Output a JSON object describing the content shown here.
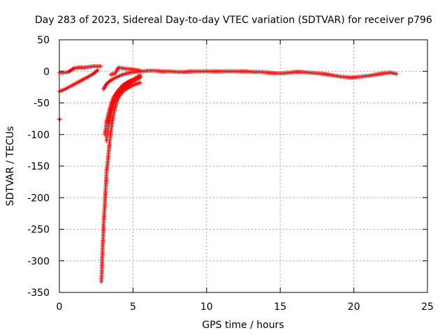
{
  "chart_data": {
    "type": "scatter",
    "title": "Day 283 of 2023, Sidereal Day-to-day VTEC variation (SDTVAR) for receiver p796",
    "xlabel": "GPS time / hours",
    "ylabel": "SDTVAR / TECUs",
    "xlim": [
      0,
      25
    ],
    "ylim": [
      -350,
      50
    ],
    "xticks": [
      0,
      5,
      10,
      15,
      20,
      25
    ],
    "yticks": [
      50,
      0,
      -50,
      -100,
      -150,
      -200,
      -250,
      -300,
      -350
    ],
    "grid": true,
    "marker": "+",
    "series": [
      {
        "name": "SDTVAR",
        "color": "#ff0000",
        "points": [
          [
            0.0,
            -76
          ],
          [
            0.03,
            -76
          ],
          [
            0.0,
            -2
          ],
          [
            0.3,
            -2
          ],
          [
            0.6,
            -1
          ],
          [
            0.8,
            2
          ],
          [
            1.0,
            5
          ],
          [
            1.3,
            6
          ],
          [
            1.6,
            6
          ],
          [
            2.0,
            7
          ],
          [
            2.3,
            8
          ],
          [
            2.6,
            8
          ],
          [
            2.8,
            8
          ],
          [
            0.0,
            -32
          ],
          [
            0.4,
            -28
          ],
          [
            0.8,
            -23
          ],
          [
            1.2,
            -18
          ],
          [
            1.6,
            -13
          ],
          [
            2.0,
            -8
          ],
          [
            2.3,
            -4
          ],
          [
            2.6,
            2
          ],
          [
            2.85,
            -333
          ],
          [
            2.88,
            -320
          ],
          [
            2.9,
            -300
          ],
          [
            2.92,
            -290
          ],
          [
            2.95,
            -275
          ],
          [
            2.98,
            -260
          ],
          [
            3.0,
            -245
          ],
          [
            3.05,
            -225
          ],
          [
            3.1,
            -205
          ],
          [
            3.15,
            -185
          ],
          [
            3.2,
            -160
          ],
          [
            3.3,
            -140
          ],
          [
            3.4,
            -115
          ],
          [
            3.5,
            -95
          ],
          [
            3.6,
            -78
          ],
          [
            3.75,
            -60
          ],
          [
            3.9,
            -48
          ],
          [
            4.1,
            -38
          ],
          [
            4.4,
            -30
          ],
          [
            4.8,
            -24
          ],
          [
            5.2,
            -20
          ],
          [
            5.5,
            -18
          ],
          [
            3.2,
            -110
          ],
          [
            3.3,
            -90
          ],
          [
            3.45,
            -72
          ],
          [
            3.6,
            -58
          ],
          [
            3.8,
            -45
          ],
          [
            4.0,
            -36
          ],
          [
            4.3,
            -28
          ],
          [
            4.6,
            -22
          ],
          [
            5.0,
            -16
          ],
          [
            5.3,
            -12
          ],
          [
            5.5,
            -10
          ],
          [
            3.3,
            -80
          ],
          [
            3.5,
            -62
          ],
          [
            3.7,
            -48
          ],
          [
            3.9,
            -38
          ],
          [
            4.2,
            -28
          ],
          [
            4.5,
            -20
          ],
          [
            4.9,
            -14
          ],
          [
            5.2,
            -10
          ],
          [
            5.5,
            -6
          ],
          [
            3.0,
            -28
          ],
          [
            3.2,
            -20
          ],
          [
            3.5,
            -14
          ],
          [
            3.8,
            -10
          ],
          [
            4.2,
            -6
          ],
          [
            4.6,
            -3
          ],
          [
            5.0,
            -1
          ],
          [
            5.5,
            0
          ],
          [
            3.1,
            -100
          ],
          [
            3.2,
            -80
          ],
          [
            3.35,
            -65
          ],
          [
            3.5,
            -52
          ],
          [
            3.7,
            -40
          ],
          [
            4.0,
            -30
          ],
          [
            4.3,
            -22
          ],
          [
            4.7,
            -16
          ],
          [
            5.1,
            -12
          ],
          [
            5.5,
            -8
          ],
          [
            3.5,
            -5
          ],
          [
            3.8,
            -3
          ],
          [
            4.0,
            6
          ],
          [
            4.3,
            5
          ],
          [
            4.6,
            4
          ],
          [
            5.0,
            3
          ],
          [
            5.3,
            2
          ],
          [
            5.5,
            1
          ],
          [
            5.6,
            0
          ],
          [
            6.0,
            1
          ],
          [
            6.5,
            1
          ],
          [
            7.0,
            0
          ],
          [
            7.5,
            0
          ],
          [
            8.0,
            -1
          ],
          [
            8.5,
            -1
          ],
          [
            9.0,
            0
          ],
          [
            9.5,
            0
          ],
          [
            10.0,
            0
          ],
          [
            10.5,
            0
          ],
          [
            11.0,
            0
          ],
          [
            11.5,
            0
          ],
          [
            11.8,
            0
          ],
          [
            12.2,
            0
          ],
          [
            12.7,
            0
          ],
          [
            13.2,
            -1
          ],
          [
            13.7,
            -1
          ],
          [
            14.2,
            -2
          ],
          [
            14.7,
            -3
          ],
          [
            15.2,
            -3
          ],
          [
            15.6,
            -2
          ],
          [
            16.0,
            -1
          ],
          [
            16.5,
            -1
          ],
          [
            17.0,
            -2
          ],
          [
            17.5,
            -3
          ],
          [
            18.0,
            -4
          ],
          [
            18.5,
            -6
          ],
          [
            19.0,
            -8
          ],
          [
            19.4,
            -9
          ],
          [
            19.8,
            -10
          ],
          [
            20.2,
            -9
          ],
          [
            20.6,
            -8
          ],
          [
            21.0,
            -7
          ],
          [
            21.5,
            -5
          ],
          [
            22.0,
            -3
          ],
          [
            22.5,
            -2
          ],
          [
            22.9,
            -4
          ]
        ]
      }
    ]
  }
}
